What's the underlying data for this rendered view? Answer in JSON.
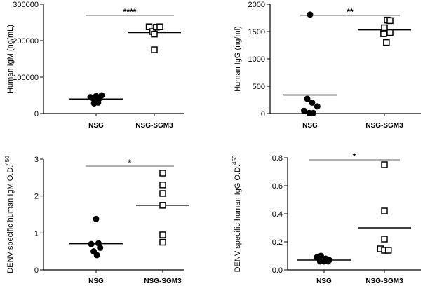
{
  "chart_data": [
    {
      "type": "scatter",
      "ylabel": "Human IgM (ng/mL)",
      "categories": [
        "NSG",
        "NSG-SGM3"
      ],
      "ylim": [
        0,
        300000
      ],
      "yticks": [
        "0",
        "100000",
        "200000",
        "300000"
      ],
      "ytick_values": [
        0,
        100000,
        200000,
        300000
      ],
      "significance": "****",
      "series": [
        {
          "marker": "filled-circle",
          "x": [
            -0.14,
            -0.07,
            0.0,
            0.07,
            0.14,
            -0.05,
            0.05
          ],
          "values": [
            45000,
            41000,
            48000,
            40000,
            50000,
            28000,
            30000
          ],
          "mean": 40000
        },
        {
          "marker": "open-square",
          "x": [
            -0.13,
            -0.04,
            0.05,
            0.14,
            0.0,
            0.0
          ],
          "values": [
            238000,
            225000,
            237000,
            238000,
            218000,
            175000
          ],
          "mean": 222000
        }
      ]
    },
    {
      "type": "scatter",
      "ylabel": "Human IgG (ng/ml)",
      "categories": [
        "NSG",
        "NSG-SGM3"
      ],
      "ylim": [
        0,
        2000
      ],
      "yticks": [
        "0",
        "500",
        "1000",
        "1500",
        "2000"
      ],
      "ytick_values": [
        0,
        500,
        1000,
        1500,
        2000
      ],
      "significance": "**",
      "series": [
        {
          "marker": "filled-circle",
          "x": [
            0.0,
            -0.07,
            0.05,
            -0.15,
            0.18,
            -0.02,
            0.08
          ],
          "values": [
            1810,
            270,
            200,
            50,
            130,
            10,
            10
          ],
          "mean": 340
        },
        {
          "marker": "open-square",
          "x": [
            0.07,
            0.14,
            0.0,
            0.14,
            -0.02,
            0.05
          ],
          "values": [
            1710,
            1700,
            1570,
            1480,
            1460,
            1300
          ],
          "mean": 1530
        }
      ]
    },
    {
      "type": "scatter",
      "ylabel": "DENV specific human IgM O.D.",
      "ylabel_sup": "450",
      "categories": [
        "NSG",
        "NSG-SGM3"
      ],
      "ylim": [
        0,
        3
      ],
      "yticks": [
        "0",
        "1",
        "2",
        "3"
      ],
      "ytick_values": [
        0,
        1,
        2,
        3
      ],
      "significance": "*",
      "series": [
        {
          "marker": "filled-circle",
          "x": [
            0.0,
            -0.12,
            0.06,
            0.1,
            -0.06,
            0.02
          ],
          "values": [
            1.38,
            0.7,
            0.72,
            0.6,
            0.5,
            0.4
          ],
          "mean": 0.71
        },
        {
          "marker": "open-square",
          "x": [
            0.0,
            0.0,
            0.0,
            0.0,
            0.0,
            0.0
          ],
          "values": [
            2.62,
            2.3,
            2.07,
            1.75,
            0.95,
            0.75
          ],
          "mean": 1.75
        }
      ]
    },
    {
      "type": "scatter",
      "ylabel": "DENV specific human IgG O.D.",
      "ylabel_sup": "450",
      "categories": [
        "NSG",
        "NSG-SGM3"
      ],
      "ylim": [
        0,
        0.8
      ],
      "yticks": [
        "0.0",
        "0.2",
        "0.4",
        "0.6",
        "0.8"
      ],
      "ytick_values": [
        0,
        0.2,
        0.4,
        0.6,
        0.8
      ],
      "significance": "*",
      "series": [
        {
          "marker": "filled-circle",
          "x": [
            -0.18,
            -0.08,
            0.04,
            0.13,
            0.0,
            -0.1,
            0.1
          ],
          "values": [
            0.09,
            0.1,
            0.08,
            0.07,
            0.06,
            0.06,
            0.06
          ],
          "mean": 0.07
        },
        {
          "marker": "open-square",
          "x": [
            0.0,
            0.0,
            0.0,
            -0.1,
            0.0,
            0.1
          ],
          "values": [
            0.75,
            0.42,
            0.22,
            0.15,
            0.14,
            0.14
          ],
          "mean": 0.3
        }
      ]
    }
  ]
}
